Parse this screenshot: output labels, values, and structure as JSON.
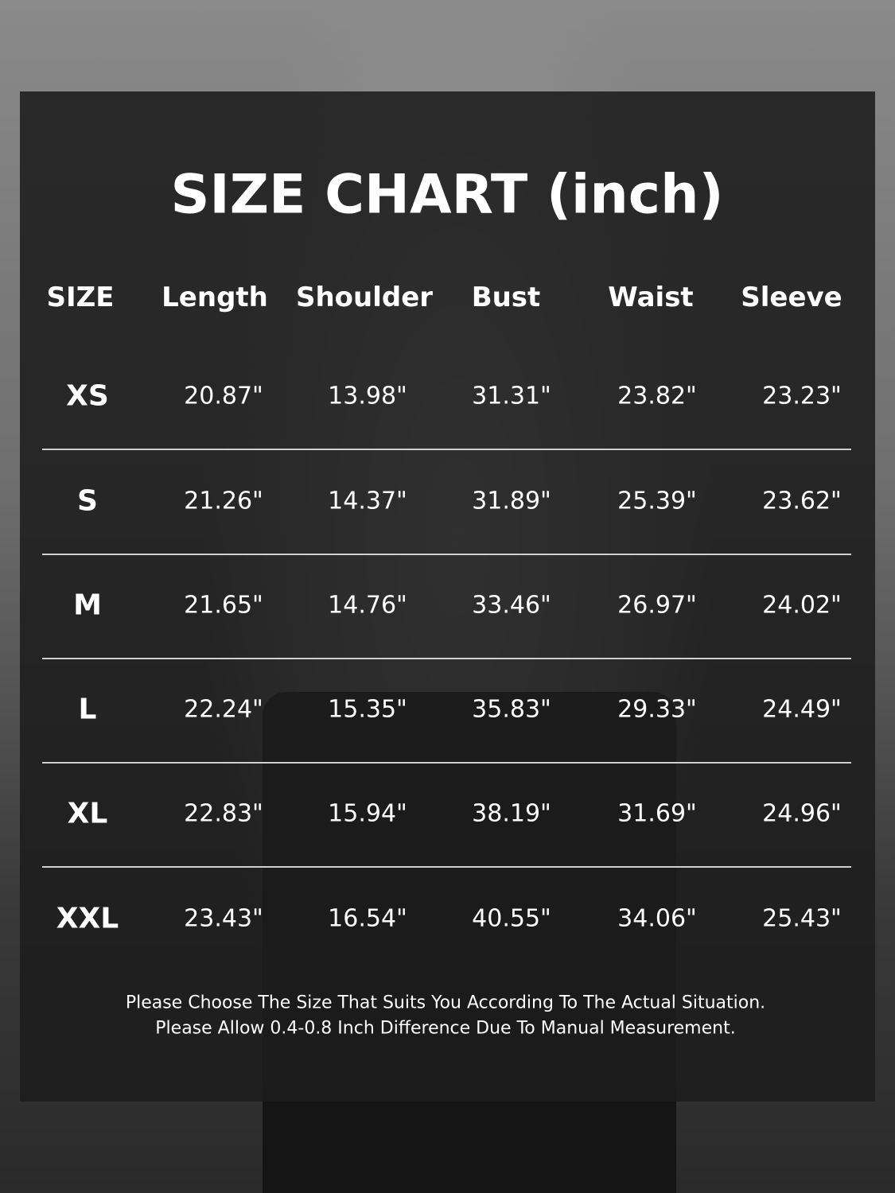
{
  "header": {
    "title": "SIZE CHART (inch)"
  },
  "table": {
    "headers": [
      "SIZE",
      "Length",
      "Shoulder",
      "Bust",
      "Waist",
      "Sleeve"
    ],
    "rows": [
      [
        "XS",
        "20.87\"",
        "13.98\"",
        "31.31\"",
        "23.82\"",
        "23.23\""
      ],
      [
        "S",
        "21.26\"",
        "14.37\"",
        "31.89\"",
        "25.39\"",
        "23.62\""
      ],
      [
        "M",
        "21.65\"",
        "14.76\"",
        "33.46\"",
        "26.97\"",
        "24.02\""
      ],
      [
        "L",
        "22.24\"",
        "15.35\"",
        "35.83\"",
        "29.33\"",
        "24.49\""
      ],
      [
        "XL",
        "22.83\"",
        "15.94\"",
        "38.19\"",
        "31.69\"",
        "24.96\""
      ],
      [
        "XXL",
        "23.43\"",
        "16.54\"",
        "40.55\"",
        "34.06\"",
        "25.43\""
      ]
    ]
  },
  "notes": [
    "Please Choose The Size That Suits You According To The Actual Situation.",
    "Please Allow 0.4-0.8 Inch Difference Due To Manual Measurement."
  ]
}
